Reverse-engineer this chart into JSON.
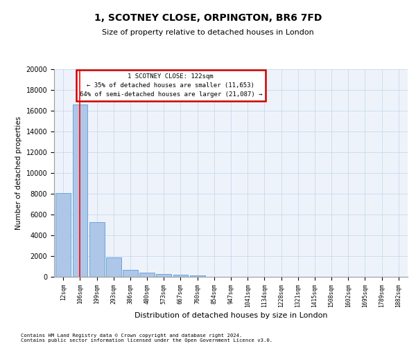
{
  "title1": "1, SCOTNEY CLOSE, ORPINGTON, BR6 7FD",
  "title2": "Size of property relative to detached houses in London",
  "xlabel": "Distribution of detached houses by size in London",
  "ylabel": "Number of detached properties",
  "bin_labels": [
    "12sqm",
    "106sqm",
    "199sqm",
    "293sqm",
    "386sqm",
    "480sqm",
    "573sqm",
    "667sqm",
    "760sqm",
    "854sqm",
    "947sqm",
    "1041sqm",
    "1134sqm",
    "1228sqm",
    "1321sqm",
    "1415sqm",
    "1508sqm",
    "1602sqm",
    "1695sqm",
    "1789sqm",
    "1882sqm"
  ],
  "bar_values": [
    8050,
    16600,
    5300,
    1850,
    700,
    380,
    270,
    180,
    130,
    0,
    0,
    0,
    0,
    0,
    0,
    0,
    0,
    0,
    0,
    0,
    0
  ],
  "bar_color": "#aec6e8",
  "bar_edge_color": "#5a9fd4",
  "grid_color": "#c8d8ee",
  "background_color": "#eef3fb",
  "red_line_x": 1.0,
  "annotation_title": "1 SCOTNEY CLOSE: 122sqm",
  "annotation_line1": "← 35% of detached houses are smaller (11,653)",
  "annotation_line2": "64% of semi-detached houses are larger (21,087) →",
  "annotation_box_color": "#ffffff",
  "annotation_border_color": "#cc0000",
  "ylim": [
    0,
    20000
  ],
  "yticks": [
    0,
    2000,
    4000,
    6000,
    8000,
    10000,
    12000,
    14000,
    16000,
    18000,
    20000
  ],
  "footer1": "Contains HM Land Registry data © Crown copyright and database right 2024.",
  "footer2": "Contains public sector information licensed under the Open Government Licence v3.0."
}
